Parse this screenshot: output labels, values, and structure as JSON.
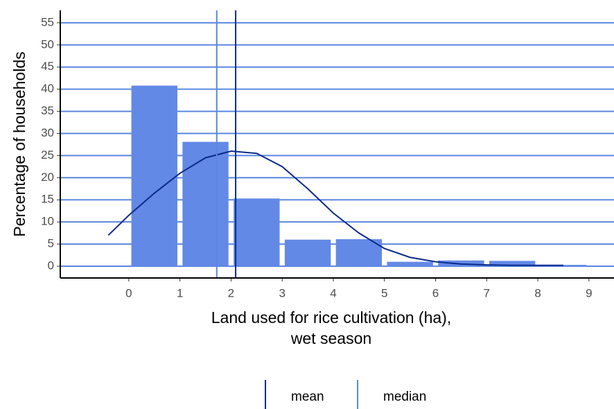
{
  "chart_data": {
    "type": "histogram",
    "xlabel": [
      "Land used for rice cultivation (ha),",
      "wet season"
    ],
    "ylabel": "Percentage of households",
    "bins": [
      0,
      1,
      2,
      3,
      4,
      5,
      6,
      7,
      8,
      9
    ],
    "values": [
      40.8,
      28.1,
      15.3,
      6,
      6.1,
      1,
      1.3,
      1.2,
      0.3
    ],
    "color": "#6389e6",
    "density": {
      "color": "#0a2a8a",
      "x": [
        -0.4,
        0,
        0.5,
        1,
        1.5,
        2,
        2.5,
        3,
        3.5,
        4,
        4.5,
        5,
        5.5,
        6,
        6.5,
        7,
        7.5,
        8,
        8.5
      ],
      "values": [
        7,
        11.5,
        16.5,
        21,
        24.5,
        26,
        25.5,
        22.5,
        17.5,
        12,
        7.5,
        4,
        2,
        1,
        0.5,
        0.3,
        0.2,
        0.2,
        0.2
      ]
    },
    "reference_lines": [
      {
        "name": "mean",
        "value": 2.09,
        "color": "#0a2a8a"
      },
      {
        "name": "median",
        "value": 1.72,
        "color": "#5b87e0"
      }
    ],
    "xlim": [
      -1.34,
      9.49
    ],
    "ylim": [
      -2.66,
      57.8
    ],
    "xticks": [
      0,
      1,
      2,
      3,
      4,
      5,
      6,
      7,
      8,
      9
    ],
    "yticks": [
      0,
      5,
      10,
      15,
      20,
      25,
      30,
      35,
      40,
      45,
      50,
      55
    ],
    "grid": true,
    "grid_color": "#5b87e0",
    "legend": "bottom"
  }
}
